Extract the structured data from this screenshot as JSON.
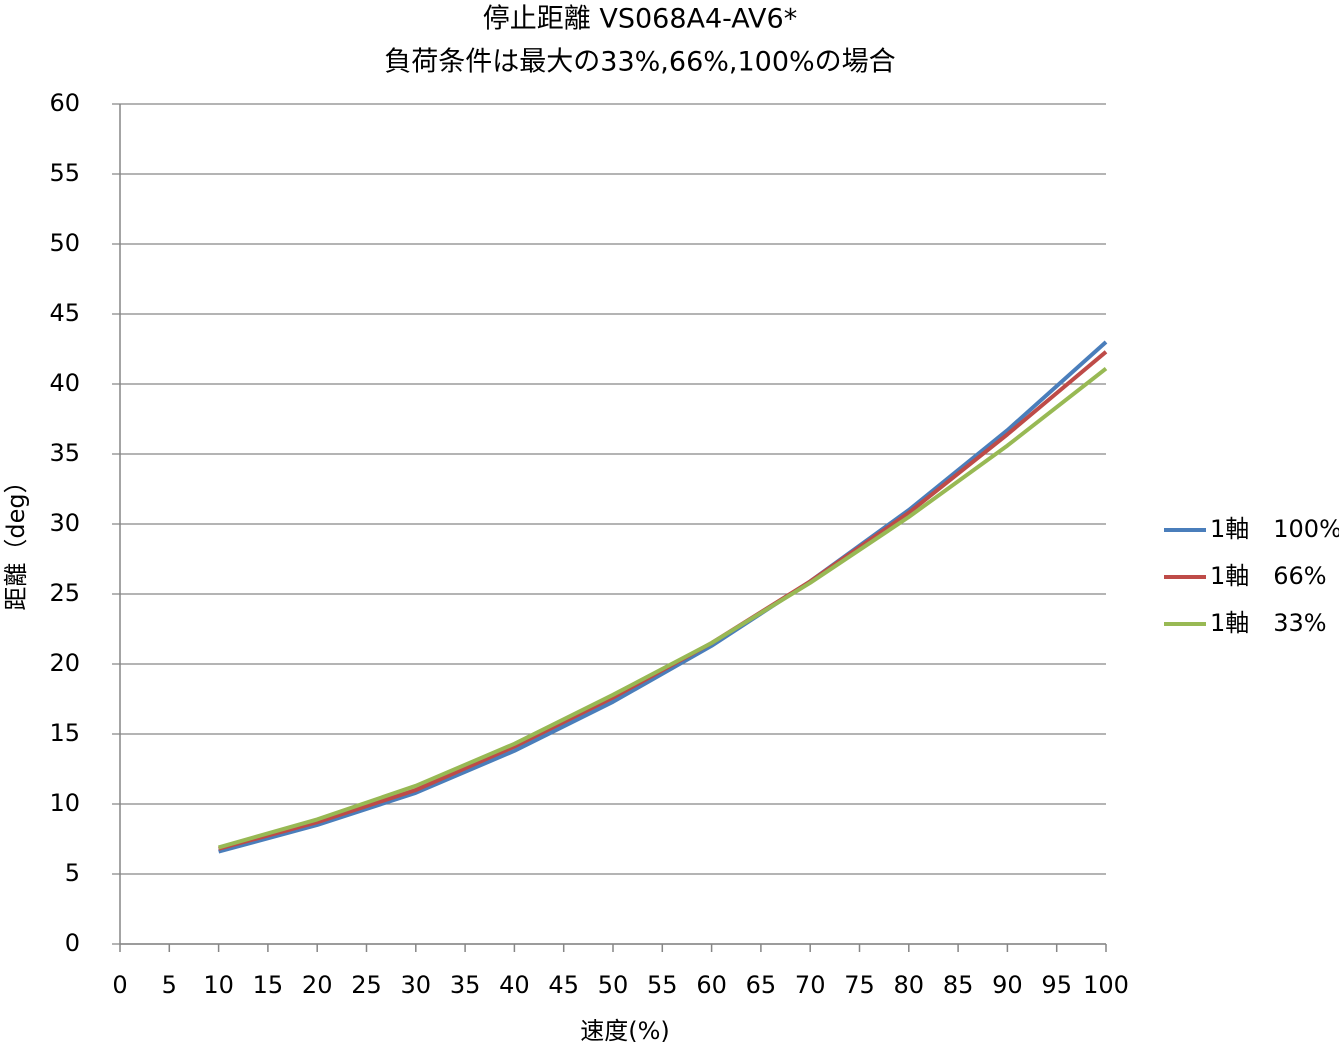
{
  "chart_data": {
    "type": "line",
    "title": "停止距離 VS068A4-AV6*",
    "subtitle": "負荷条件は最大の33%,66%,100%の場合",
    "x_label": "速度(%)",
    "y_label": "距離（deg）",
    "x": [
      10,
      20,
      30,
      40,
      50,
      60,
      70,
      80,
      90,
      100
    ],
    "series": [
      {
        "name": "1軸　100%",
        "color": "#4a7ebb",
        "values": [
          6.6,
          8.5,
          10.8,
          13.8,
          17.3,
          21.3,
          25.9,
          31.0,
          36.7,
          43.0
        ]
      },
      {
        "name": "1軸　66%",
        "color": "#be4b48",
        "values": [
          6.8,
          8.7,
          11.0,
          14.1,
          17.6,
          21.5,
          25.9,
          30.8,
          36.4,
          42.3
        ]
      },
      {
        "name": "1軸　33%",
        "color": "#98b954",
        "values": [
          6.9,
          8.9,
          11.3,
          14.3,
          17.8,
          21.5,
          25.8,
          30.5,
          35.6,
          41.1
        ]
      }
    ],
    "xlim": [
      0,
      100
    ],
    "xticks": [
      0,
      5,
      10,
      15,
      20,
      25,
      30,
      35,
      40,
      45,
      50,
      55,
      60,
      65,
      70,
      75,
      80,
      85,
      90,
      95,
      100
    ],
    "ylim": [
      0,
      60
    ],
    "yticks": [
      0,
      5,
      10,
      15,
      20,
      25,
      30,
      35,
      40,
      45,
      50,
      55,
      60
    ],
    "grid": true,
    "legend": "right"
  }
}
